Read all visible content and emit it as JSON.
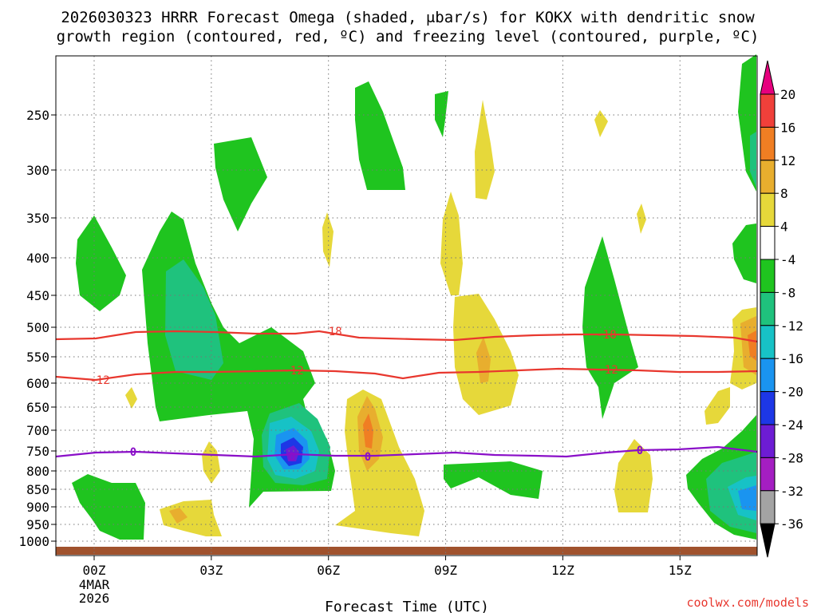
{
  "chart_data": {
    "type": "time-height contour",
    "title_line1": "2026030323 HRRR Forecast Omega (shaded, μbar/s) for KOKX with dendritic snow",
    "title_line2": "growth region (contoured, red, ºC) and freezing level (contoured, purple, ºC)",
    "xlabel": "Forecast Time (UTC)",
    "x_ticks": [
      {
        "hour": 0,
        "label": "00Z"
      },
      {
        "hour": 3,
        "label": "03Z"
      },
      {
        "hour": 6,
        "label": "06Z"
      },
      {
        "hour": 9,
        "label": "09Z"
      },
      {
        "hour": 12,
        "label": "12Z"
      },
      {
        "hour": 15,
        "label": "15Z"
      }
    ],
    "date_label_line1": "4MAR",
    "date_label_line2": "2026",
    "x_range_hours": [
      -1,
      17
    ],
    "y_ticks_hpa": [
      "250",
      "300",
      "350",
      "400",
      "450",
      "500",
      "550",
      "600",
      "650",
      "700",
      "750",
      "800",
      "850",
      "900",
      "950",
      "1000"
    ],
    "colorbar": {
      "levels": [
        "20",
        "16",
        "12",
        "8",
        "4",
        "-4",
        "-8",
        "-12",
        "-16",
        "-20",
        "-24",
        "-28",
        "-32",
        "-36"
      ],
      "colors": [
        "#e6007e",
        "#f0403a",
        "#f07e23",
        "#e8ae2e",
        "#e6d83a",
        "#ffffff",
        "#1fc41f",
        "#1fc27d",
        "#17c2c6",
        "#1a94f0",
        "#1d37e6",
        "#6d1cd4",
        "#a41ec2",
        "#a3a3a3",
        "#000000"
      ]
    },
    "contours": {
      "dgz_labels": [
        "-18",
        "-12"
      ],
      "freezing_label": "0",
      "dgz_color": "#e8372e",
      "freezing_color": "#8a0fc8"
    },
    "source_label": "coolwx.com/models"
  }
}
